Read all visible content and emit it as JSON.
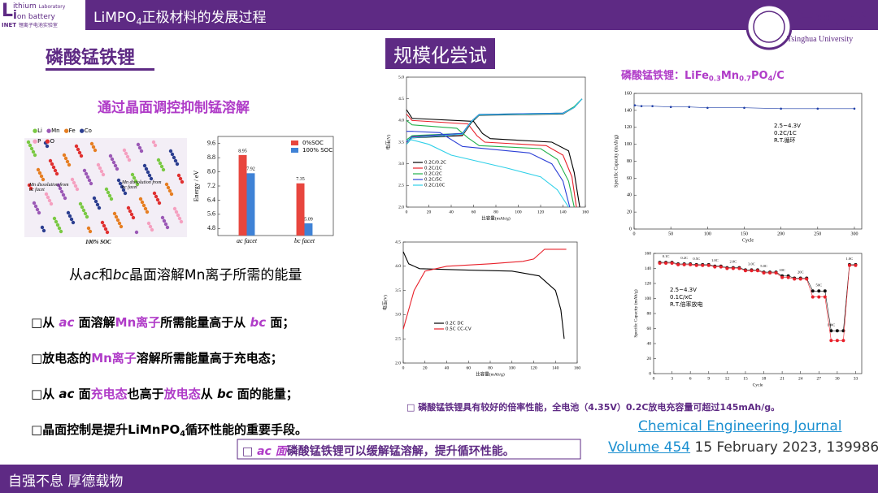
{
  "header": {
    "title": {
      "pre": "LiMPO",
      "sub": "4",
      "post": "正极材料的发展过程"
    },
    "logo": {
      "l1": "ithium",
      "l2": "on battery",
      "lab": "Laboratory",
      "inet": "INET",
      "cn": "锂离子电池实验室"
    },
    "university": {
      "cn": "清華大学",
      "en": "Tsinghua University"
    }
  },
  "section": "磷酸锰铁锂",
  "badge": "规模化尝试",
  "subtitle": "通过晶面调控抑制锰溶解",
  "crystal": {
    "legend": [
      "Li",
      "Mn",
      "Fe",
      "Co",
      "P",
      "O"
    ],
    "left": "Mn dissolution from ac facet",
    "right": "Mn dissolution from bc facet",
    "soc": "100% SOC"
  },
  "caption": [
    {
      "text": "从"
    },
    {
      "text": "ac",
      "style": "it"
    },
    {
      "text": "和"
    },
    {
      "text": "bc",
      "style": "it"
    },
    {
      "text": "晶面溶解Mn离子所需的能量"
    }
  ],
  "bullets": [
    [
      {
        "text": "□从 "
      },
      {
        "text": "ac",
        "style": "hli"
      },
      {
        "text": " 面溶解"
      },
      {
        "text": "Mn离子",
        "style": "hl"
      },
      {
        "text": "所需能量高于从 "
      },
      {
        "text": "bc",
        "style": "hli"
      },
      {
        "text": " 面；"
      }
    ],
    [
      {
        "text": "□放电态的"
      },
      {
        "text": "Mn离子",
        "style": "hl"
      },
      {
        "text": "溶解所需能量高于充电态；"
      }
    ],
    [
      {
        "text": "□从 "
      },
      {
        "text": "ac",
        "style": "it"
      },
      {
        "text": " 面"
      },
      {
        "text": "充电态",
        "style": "hl"
      },
      {
        "text": "也高于"
      },
      {
        "text": "放电态",
        "style": "hl"
      },
      {
        "text": "从 "
      },
      {
        "text": "bc",
        "style": "it"
      },
      {
        "text": " 面的能量；"
      }
    ],
    [
      {
        "text": "□晶面控制是提升LiMnPO"
      },
      {
        "text": "4",
        "style": "sub"
      },
      {
        "text": "循环性能的重要手段。"
      }
    ]
  ],
  "conclusion": [
    {
      "text": "□ "
    },
    {
      "text": "ac 面",
      "style": "hli"
    },
    {
      "text": "磷酸锰铁锂可以缓解锰溶解，提升循环性能。"
    }
  ],
  "note": "□  磷酸锰铁锂具有较好的倍率性能，全电池（4.35V）0.2C放电充容量可超过145mAh/g。",
  "reference": {
    "journal": "Chemical Engineering Journal",
    "volume": "Volume 454",
    "date": " 15 February 2023, 139986"
  },
  "footer": "自强不息 厚德载物",
  "chart_data": [
    {
      "type": "bar",
      "ylabel": "Energy / eV",
      "categories": [
        "ac facet",
        "bc facet"
      ],
      "series": [
        {
          "name": "0%SOC",
          "color": "#e8463e",
          "values": [
            8.95,
            7.35
          ]
        },
        {
          "name": "100% SOC",
          "color": "#3f82d6",
          "values": [
            7.92,
            5.09
          ]
        }
      ],
      "ylim": [
        4.4,
        10
      ],
      "yticks": [
        4.8,
        5.6,
        6.4,
        7.2,
        {
          "value": 8,
          "label": "8.0"
        },
        8.8,
        9.6
      ],
      "legend": "upper right"
    },
    {
      "type": "line",
      "xlabel": "比容量(mAh/g)",
      "ylabel": "电压(V)",
      "xlim": [
        0,
        160
      ],
      "xticks": [
        0,
        20,
        40,
        60,
        80,
        100,
        120,
        140,
        160
      ],
      "ylim": [
        2,
        5
      ],
      "yticks": [
        {
          "value": 2,
          "label": "2.0"
        },
        2.5,
        {
          "value": 3,
          "label": "3.0"
        },
        3.5,
        {
          "value": 4,
          "label": "4.0"
        },
        4.5,
        {
          "value": 5,
          "label": "5.0"
        }
      ],
      "legend": "lower left",
      "series": [
        {
          "name": "0.2C/0.2C",
          "color": "#000000",
          "x": [
            0,
            5,
            60,
            68,
            75,
            130,
            145,
            150,
            155,
            null,
            0,
            5,
            50,
            58,
            65,
            140,
            150,
            157
          ],
          "values": [
            4.25,
            4.05,
            3.98,
            3.7,
            3.58,
            3.5,
            3.3,
            2.8,
            2,
            null,
            3.45,
            3.6,
            3.65,
            3.95,
            4.12,
            4.15,
            4.3,
            4.5
          ]
        },
        {
          "name": "0.2C/1C",
          "color": "#e8202a",
          "x": [
            0,
            5,
            55,
            63,
            70,
            125,
            140,
            148,
            152,
            null,
            0,
            5,
            50,
            58,
            65,
            140,
            150,
            157
          ],
          "values": [
            4.15,
            4,
            3.92,
            3.65,
            3.5,
            3.42,
            3.2,
            2.7,
            2,
            null,
            3.5,
            3.62,
            3.67,
            3.97,
            4.13,
            4.16,
            4.3,
            4.5
          ]
        },
        {
          "name": "0.2C/2C",
          "color": "#22b14c",
          "x": [
            0,
            5,
            45,
            55,
            65,
            120,
            135,
            145,
            150,
            null,
            0,
            5,
            50,
            58,
            65,
            140,
            150,
            157
          ],
          "values": [
            4,
            3.9,
            3.82,
            3.6,
            3.42,
            3.35,
            3.1,
            2.6,
            2,
            null,
            3.55,
            3.65,
            3.7,
            3.98,
            4.14,
            4.17,
            4.32,
            4.5
          ]
        },
        {
          "name": "0.2C/5C",
          "color": "#2b3fd6",
          "x": [
            0,
            5,
            30,
            50,
            110,
            130,
            140,
            146,
            null,
            0,
            5,
            50,
            58,
            65,
            140,
            150,
            157
          ],
          "values": [
            3.75,
            3.75,
            3.72,
            3.4,
            3.25,
            3,
            2.6,
            2,
            null,
            3.5,
            3.63,
            3.7,
            3.98,
            4.14,
            4.17,
            4.3,
            4.5
          ]
        },
        {
          "name": "0.2C/10C",
          "color": "#2fd0e8",
          "x": [
            0,
            5,
            20,
            40,
            90,
            120,
            135,
            145,
            null,
            0,
            5,
            50,
            58,
            65,
            140,
            150,
            157
          ],
          "values": [
            3.55,
            3.55,
            3.45,
            3.2,
            2.9,
            2.7,
            2.4,
            2,
            null,
            3.45,
            3.6,
            3.68,
            3.97,
            4.13,
            4.16,
            4.3,
            4.5
          ]
        }
      ]
    },
    {
      "type": "line",
      "title": [
        {
          "text": "磷酸锰铁锂：LiFe"
        },
        {
          "text": "0.3",
          "style": "sub"
        },
        {
          "text": "Mn"
        },
        {
          "text": "0.7",
          "style": "sub"
        },
        {
          "text": "PO"
        },
        {
          "text": "4",
          "style": "sub"
        },
        {
          "text": "/C"
        }
      ],
      "xlabel": "Cycle",
      "ylabel": "Specific Capacity (mAh/g)",
      "xlim": [
        0,
        310
      ],
      "xticks": [
        0,
        50,
        100,
        150,
        200,
        250,
        300
      ],
      "ylim": [
        0,
        160
      ],
      "yticks": [
        0,
        20,
        40,
        60,
        80,
        100,
        120,
        140,
        160
      ],
      "annotation": [
        "2.5~4.3V",
        "0.2C/1C",
        "R.T.循环"
      ],
      "markers": true,
      "series": [
        {
          "color": "#1f3fa8",
          "x": [
            1,
            10,
            25,
            50,
            75,
            100,
            150,
            200,
            250,
            300
          ],
          "values": [
            146,
            145,
            145,
            144,
            144,
            143,
            143,
            142,
            142,
            142
          ]
        }
      ]
    },
    {
      "type": "line",
      "xlabel": "比容量(mAh/g)",
      "ylabel": "电压(V)",
      "xlim": [
        0,
        160
      ],
      "xticks": [
        0,
        20,
        40,
        60,
        80,
        100,
        120,
        140,
        160
      ],
      "ylim": [
        2,
        4.5
      ],
      "yticks": [
        {
          "value": 2,
          "label": "2.0"
        },
        2.5,
        {
          "value": 3,
          "label": "3.0"
        },
        3.5,
        {
          "value": 4,
          "label": "4.0"
        },
        4.5
      ],
      "legend": "center",
      "series": [
        {
          "name": "0.2C DC",
          "color": "#000000",
          "x": [
            0,
            5,
            15,
            60,
            100,
            125,
            140,
            145,
            148
          ],
          "values": [
            4.3,
            4.05,
            3.95,
            3.92,
            3.9,
            3.8,
            3.5,
            3.1,
            2.5
          ]
        },
        {
          "name": "0.5C CC-CV",
          "color": "#e8202a",
          "x": [
            0,
            5,
            10,
            20,
            40,
            80,
            110,
            120,
            130,
            150
          ],
          "values": [
            2.7,
            3.1,
            3.5,
            3.9,
            4,
            4.05,
            4.1,
            4.15,
            4.35,
            4.35
          ]
        }
      ]
    },
    {
      "type": "line",
      "xlabel": "Cycle",
      "ylabel": "Specific Capacity (mAh/g)",
      "xlim": [
        0,
        34
      ],
      "xticks": [
        0,
        3,
        6,
        9,
        12,
        15,
        18,
        21,
        24,
        27,
        30,
        33
      ],
      "ylim": [
        0,
        160
      ],
      "yticks": [
        0,
        20,
        40,
        60,
        80,
        100,
        120,
        140,
        160
      ],
      "annotation": [
        "2.5~4.3V",
        "0.1C/xC",
        "R.T.倍率放电"
      ],
      "markers": true,
      "rate_labels": [
        "0.1C",
        "0.2C",
        "0.5C",
        "1.0C",
        "2.0C",
        "3.0C",
        "5.0C",
        "10C",
        "20C",
        "50C",
        "100C",
        "1.0C"
      ],
      "x": [
        1,
        2,
        3,
        4,
        5,
        6,
        7,
        8,
        9,
        10,
        11,
        12,
        13,
        14,
        15,
        16,
        17,
        18,
        19,
        20,
        21,
        22,
        23,
        24,
        25,
        26,
        27,
        28,
        29,
        30,
        31,
        32,
        33
      ],
      "series": [
        {
          "color": "#111111",
          "values": [
            148,
            148,
            148,
            146,
            146,
            146,
            145,
            145,
            145,
            143,
            143,
            141,
            141,
            141,
            138,
            138,
            138,
            135,
            135,
            135,
            130,
            130,
            127,
            127,
            127,
            110,
            110,
            110,
            57,
            57,
            57,
            145,
            145
          ]
        },
        {
          "color": "#e8202a",
          "values": [
            147,
            147,
            147,
            145,
            145,
            145,
            144,
            144,
            144,
            142,
            142,
            140,
            140,
            140,
            137,
            137,
            137,
            134,
            134,
            134,
            128,
            128,
            126,
            126,
            126,
            102,
            102,
            102,
            44,
            44,
            44,
            144,
            144
          ]
        }
      ]
    }
  ]
}
